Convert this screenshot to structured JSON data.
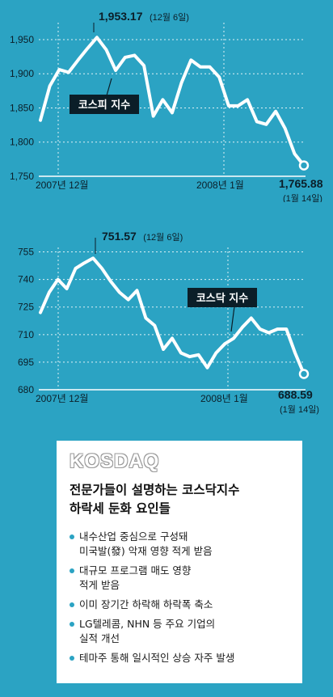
{
  "chart_data": [
    {
      "type": "line",
      "title": "",
      "series": [
        {
          "name": "코스피 지수",
          "values": [
            1832,
            1882,
            1906,
            1902,
            1920,
            1937,
            1953.17,
            1935,
            1905,
            1924,
            1927,
            1912,
            1838,
            1862,
            1843,
            1887,
            1920,
            1910,
            1910,
            1895,
            1853,
            1853,
            1862,
            1830,
            1826,
            1845,
            1820,
            1783,
            1765.88
          ]
        }
      ],
      "ylim": [
        1750,
        1960
      ],
      "yticks": [
        "1,950",
        "1,900",
        "1,850",
        "1,800",
        "1,750"
      ],
      "xticks": [
        "2007년 12월",
        "2008년 1월"
      ],
      "series_label": "코스피 지수",
      "peak": {
        "value": "1,953.17",
        "date": "(12월 6일)"
      },
      "end": {
        "value": "1,765.88",
        "date": "(1월 14일)"
      },
      "grid": true,
      "colors": {
        "line": "#ffffff",
        "background": "#2ba3c3",
        "label_box": "#0b1e28"
      }
    },
    {
      "type": "line",
      "title": "",
      "series": [
        {
          "name": "코스닥 지수",
          "values": [
            722,
            733,
            740,
            735,
            746,
            749,
            751.57,
            746,
            739,
            733,
            729,
            734,
            719,
            715,
            702,
            708,
            700,
            698,
            699,
            692,
            700,
            705,
            708,
            714,
            719,
            713,
            711,
            713,
            713,
            700,
            688.59
          ]
        }
      ],
      "ylim": [
        680,
        757
      ],
      "yticks": [
        "755",
        "740",
        "725",
        "710",
        "695",
        "680"
      ],
      "xticks": [
        "2007년 12월",
        "2008년 1월"
      ],
      "series_label": "코스닥 지수",
      "peak": {
        "value": "751.57",
        "date": "(12월 6일)"
      },
      "end": {
        "value": "688.59",
        "date": "(1월 14일)"
      },
      "grid": true,
      "colors": {
        "line": "#ffffff",
        "background": "#2ba3c3",
        "label_box": "#0b1e28"
      }
    }
  ],
  "info": {
    "logo": "KOSDAQ",
    "heading": [
      "전문가들이 설명하는 코스닥지수",
      "하락세 둔화 요인들"
    ],
    "bullets": [
      [
        "내수산업 중심으로 구성돼",
        "미국발(發) 악재 영향 적게 받음"
      ],
      [
        "대규모 프로그램 매도 영향",
        "적게 받음"
      ],
      [
        "이미 장기간 하락해 하락폭 축소"
      ],
      [
        "LG텔레콤, NHN 등 주요 기업의",
        "실적 개선"
      ],
      [
        "테마주 통해 일시적인 상승 자주 발생"
      ]
    ]
  }
}
